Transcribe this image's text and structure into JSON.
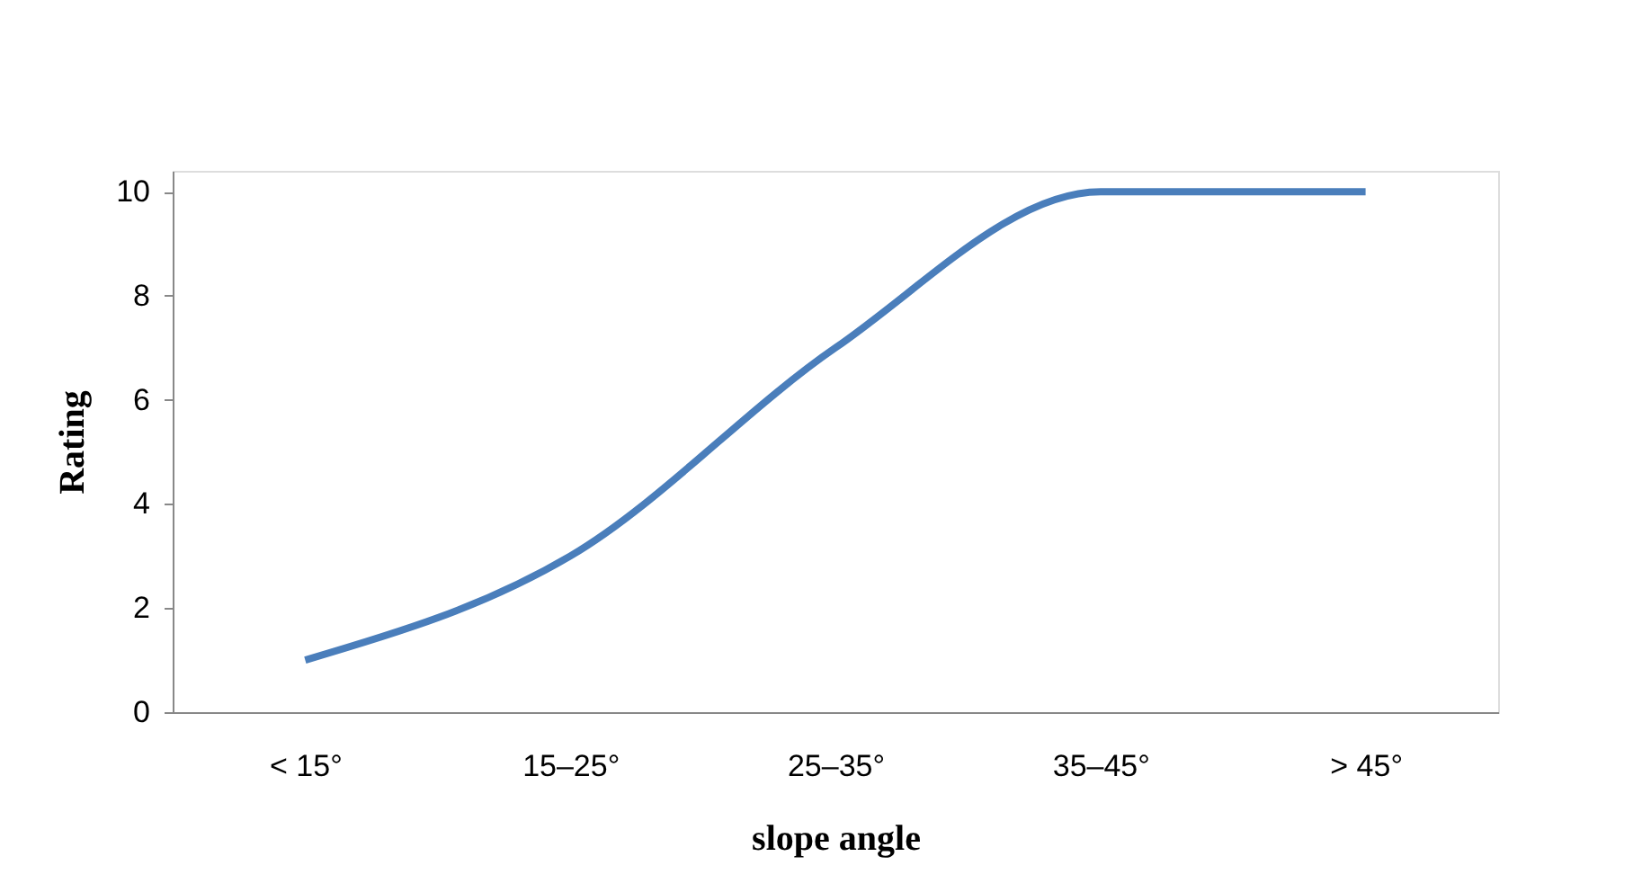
{
  "chart_data": {
    "type": "line",
    "xlabel": "slope angle",
    "ylabel": "Rating",
    "categories": [
      "< 15°",
      "15–25°",
      "25–35°",
      "35–45°",
      "> 45°"
    ],
    "series": [
      {
        "color": "#4a7ebb",
        "values": [
          1,
          3,
          7,
          10,
          10
        ]
      }
    ],
    "ylim": [
      0,
      10.4
    ],
    "yticks": [
      0,
      2,
      4,
      6,
      8,
      10
    ],
    "grid": false,
    "legend": false,
    "marker": "none",
    "line_style": "solid"
  }
}
